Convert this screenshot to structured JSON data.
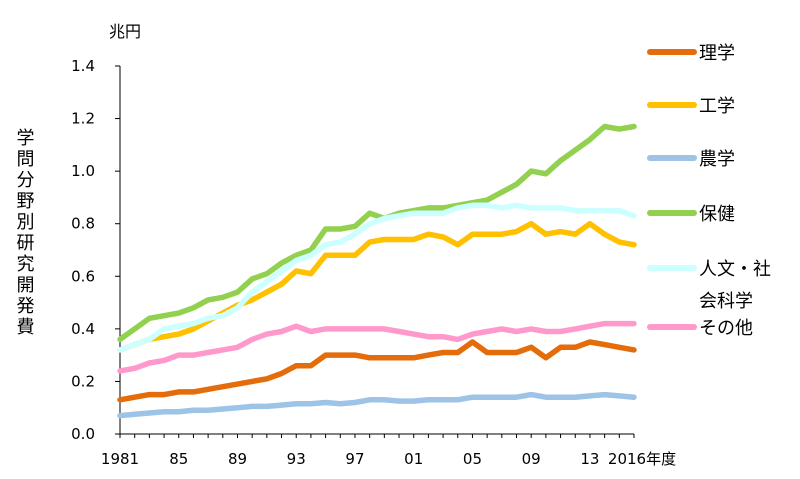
{
  "chart_data": {
    "type": "line",
    "title": "",
    "y_unit": "兆円",
    "ylabel": "学問分野別研究開発費",
    "x_suffix": "年度",
    "x_tick_labels": [
      "1981",
      "85",
      "89",
      "93",
      "97",
      "01",
      "05",
      "09",
      "13",
      "2016"
    ],
    "y_tick_labels": [
      "0.0",
      "0.2",
      "0.4",
      "0.6",
      "0.8",
      "1.0",
      "1.2",
      "1.4"
    ],
    "ylim": [
      0,
      1.4
    ],
    "xlim": [
      1981,
      2016
    ],
    "grid": false,
    "legend_position": "right",
    "x": [
      1981,
      1982,
      1983,
      1984,
      1985,
      1986,
      1987,
      1988,
      1989,
      1990,
      1991,
      1992,
      1993,
      1994,
      1995,
      1996,
      1997,
      1998,
      1999,
      2000,
      2001,
      2002,
      2003,
      2004,
      2005,
      2006,
      2007,
      2008,
      2009,
      2010,
      2011,
      2012,
      2013,
      2014,
      2015,
      2016
    ],
    "series": [
      {
        "name": "理学",
        "color": "#e46c0a",
        "values": [
          0.13,
          0.14,
          0.15,
          0.15,
          0.16,
          0.16,
          0.17,
          0.18,
          0.19,
          0.2,
          0.21,
          0.23,
          0.26,
          0.26,
          0.3,
          0.3,
          0.3,
          0.29,
          0.29,
          0.29,
          0.29,
          0.3,
          0.31,
          0.31,
          0.35,
          0.31,
          0.31,
          0.31,
          0.33,
          0.29,
          0.33,
          0.33,
          0.35,
          0.34,
          0.33,
          0.32
        ]
      },
      {
        "name": "工学",
        "color": "#ffc000",
        "values": [
          0.32,
          0.34,
          0.36,
          0.37,
          0.38,
          0.4,
          0.43,
          0.46,
          0.49,
          0.51,
          0.54,
          0.57,
          0.62,
          0.61,
          0.68,
          0.68,
          0.68,
          0.73,
          0.74,
          0.74,
          0.74,
          0.76,
          0.75,
          0.72,
          0.76,
          0.76,
          0.76,
          0.77,
          0.8,
          0.76,
          0.77,
          0.76,
          0.8,
          0.76,
          0.73,
          0.72
        ]
      },
      {
        "name": "農学",
        "color": "#9dc3e6",
        "values": [
          0.07,
          0.075,
          0.08,
          0.085,
          0.085,
          0.09,
          0.09,
          0.095,
          0.1,
          0.105,
          0.105,
          0.11,
          0.115,
          0.115,
          0.12,
          0.115,
          0.12,
          0.13,
          0.13,
          0.125,
          0.125,
          0.13,
          0.13,
          0.13,
          0.14,
          0.14,
          0.14,
          0.14,
          0.15,
          0.14,
          0.14,
          0.14,
          0.145,
          0.15,
          0.145,
          0.14
        ]
      },
      {
        "name": "保健",
        "color": "#92d050",
        "values": [
          0.36,
          0.4,
          0.44,
          0.45,
          0.46,
          0.48,
          0.51,
          0.52,
          0.54,
          0.59,
          0.61,
          0.65,
          0.68,
          0.7,
          0.78,
          0.78,
          0.79,
          0.84,
          0.82,
          0.84,
          0.85,
          0.86,
          0.86,
          0.87,
          0.88,
          0.89,
          0.92,
          0.95,
          1.0,
          0.99,
          1.04,
          1.08,
          1.12,
          1.17,
          1.16,
          1.17
        ]
      },
      {
        "name": "人文・社会科学",
        "name_lines": [
          "人文・社",
          "会科学"
        ],
        "color": "#ccffff",
        "values": [
          0.32,
          0.34,
          0.36,
          0.4,
          0.41,
          0.42,
          0.44,
          0.45,
          0.48,
          0.54,
          0.58,
          0.62,
          0.66,
          0.68,
          0.72,
          0.73,
          0.76,
          0.8,
          0.82,
          0.83,
          0.84,
          0.84,
          0.84,
          0.86,
          0.87,
          0.87,
          0.86,
          0.87,
          0.86,
          0.86,
          0.86,
          0.85,
          0.85,
          0.85,
          0.85,
          0.83
        ]
      },
      {
        "name": "その他",
        "color": "#ff99cc",
        "values": [
          0.24,
          0.25,
          0.27,
          0.28,
          0.3,
          0.3,
          0.31,
          0.32,
          0.33,
          0.36,
          0.38,
          0.39,
          0.41,
          0.39,
          0.4,
          0.4,
          0.4,
          0.4,
          0.4,
          0.39,
          0.38,
          0.37,
          0.37,
          0.36,
          0.38,
          0.39,
          0.4,
          0.39,
          0.4,
          0.39,
          0.39,
          0.4,
          0.41,
          0.42,
          0.42,
          0.42
        ]
      }
    ]
  }
}
